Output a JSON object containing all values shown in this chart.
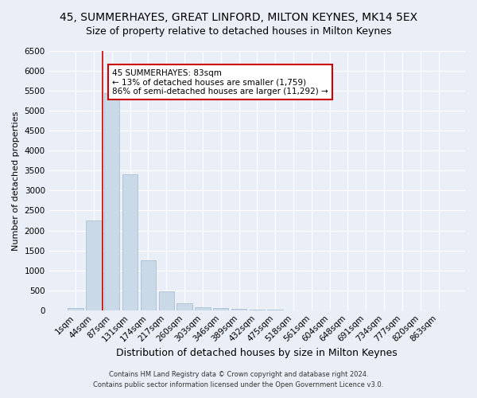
{
  "title1": "45, SUMMERHAYES, GREAT LINFORD, MILTON KEYNES, MK14 5EX",
  "title2": "Size of property relative to detached houses in Milton Keynes",
  "xlabel": "Distribution of detached houses by size in Milton Keynes",
  "ylabel": "Number of detached properties",
  "footer1": "Contains HM Land Registry data © Crown copyright and database right 2024.",
  "footer2": "Contains public sector information licensed under the Open Government Licence v3.0.",
  "categories": [
    "1sqm",
    "44sqm",
    "87sqm",
    "131sqm",
    "174sqm",
    "217sqm",
    "260sqm",
    "303sqm",
    "346sqm",
    "389sqm",
    "432sqm",
    "475sqm",
    "518sqm",
    "561sqm",
    "604sqm",
    "648sqm",
    "691sqm",
    "734sqm",
    "777sqm",
    "820sqm",
    "863sqm"
  ],
  "values": [
    50,
    2250,
    5450,
    3400,
    1250,
    480,
    175,
    80,
    50,
    30,
    10,
    5,
    3,
    2,
    1,
    1,
    0,
    0,
    0,
    0,
    0
  ],
  "bar_color": "#c9d9e8",
  "bar_edge_color": "#a0b8cc",
  "annotation_box_facecolor": "#ffffff",
  "annotation_box_edgecolor": "#cc0000",
  "vline_color": "#cc0000",
  "vline_x": 1.5,
  "annotation_text": "45 SUMMERHAYES: 83sqm\n← 13% of detached houses are smaller (1,759)\n86% of semi-detached houses are larger (11,292) →",
  "ylim": [
    0,
    6500
  ],
  "yticks": [
    0,
    500,
    1000,
    1500,
    2000,
    2500,
    3000,
    3500,
    4000,
    4500,
    5000,
    5500,
    6000,
    6500
  ],
  "bg_color": "#eaeff7",
  "plot_bg_color": "#eaeff7",
  "grid_color": "#ffffff",
  "title1_fontsize": 10,
  "title2_fontsize": 9,
  "xlabel_fontsize": 9,
  "ylabel_fontsize": 8,
  "tick_fontsize": 7.5,
  "annotation_fontsize": 7.5,
  "footer_fontsize": 6
}
